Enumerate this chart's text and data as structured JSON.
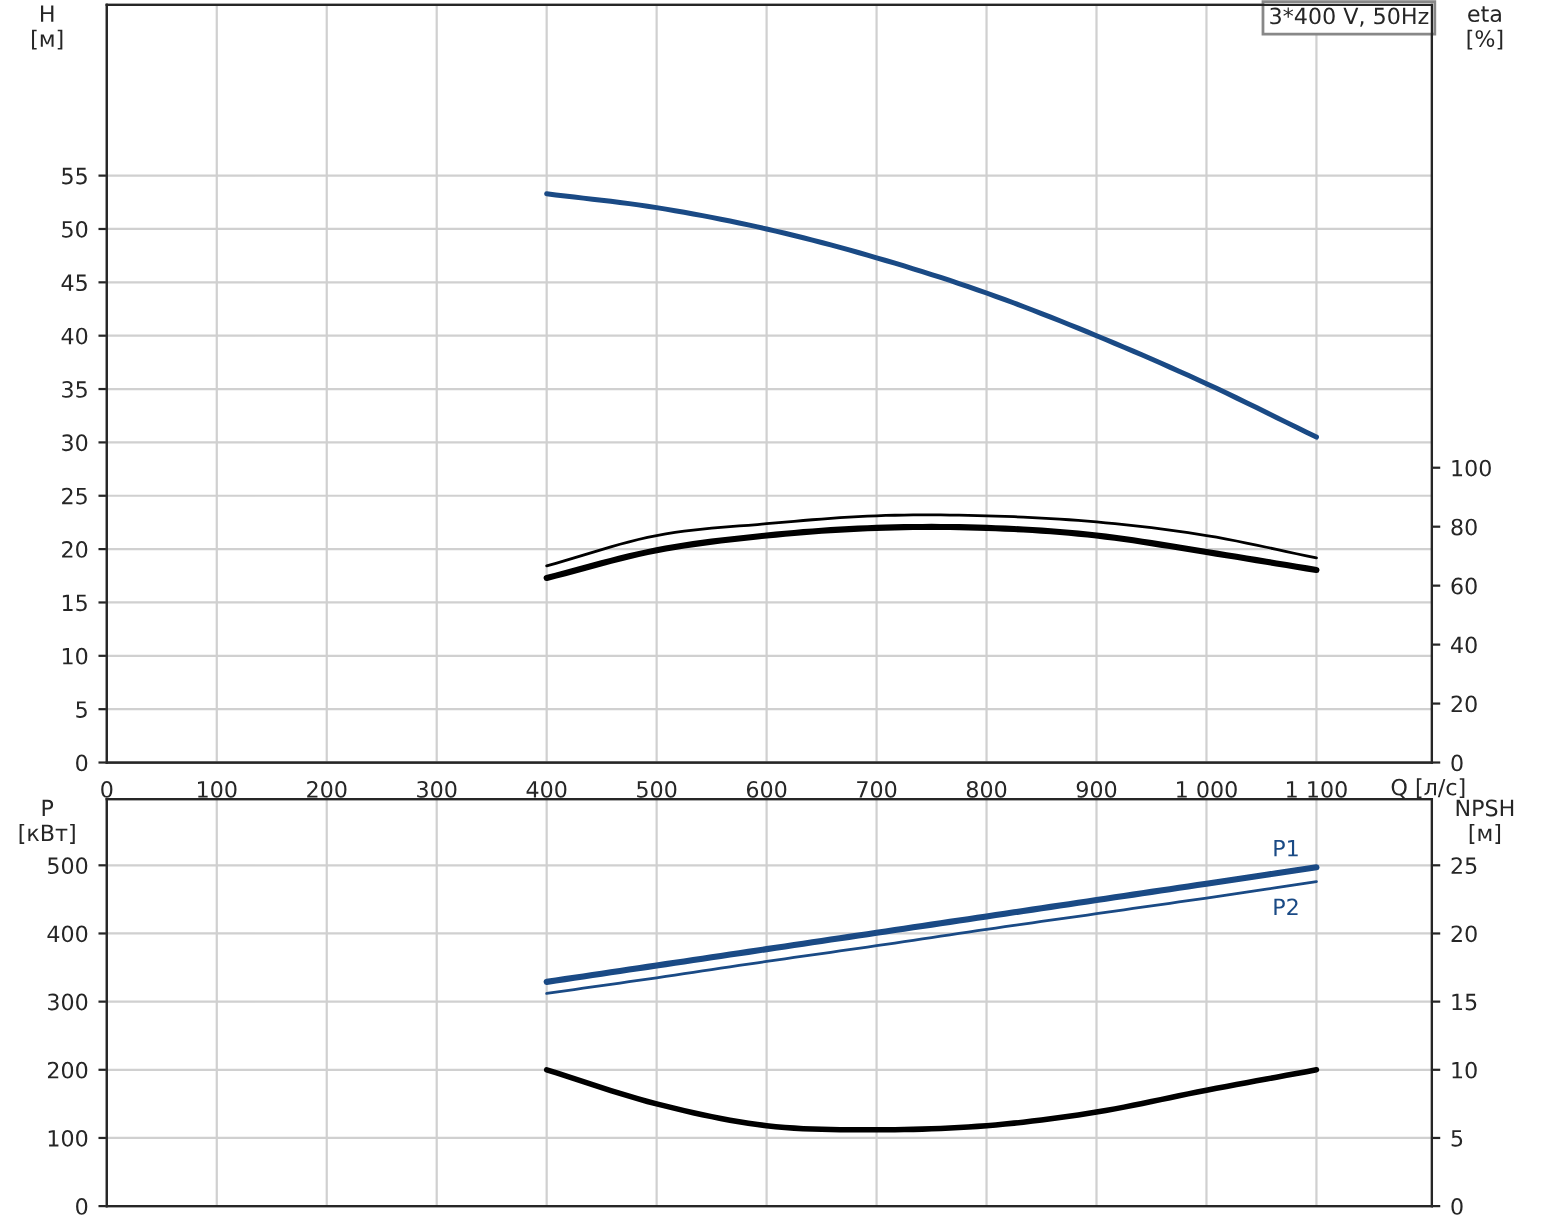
{
  "chart_data": [
    {
      "type": "line",
      "title": "3*400 V, 50Hz",
      "xlabel": "Q [л/с]",
      "ylabel": "H\n[м]",
      "y2label": "eta\n[%]",
      "x": [
        400,
        500,
        600,
        700,
        800,
        900,
        1000,
        1100
      ],
      "xlim": [
        0,
        1205
      ],
      "xticks": [
        0,
        100,
        200,
        300,
        400,
        500,
        600,
        700,
        800,
        900,
        {
          "value": 1000,
          "label": "1 000"
        },
        {
          "value": 1100,
          "label": "1 100"
        }
      ],
      "ylim": [
        0,
        71
      ],
      "yticks": [
        0,
        5,
        10,
        15,
        20,
        25,
        30,
        35,
        40,
        45,
        50,
        55
      ],
      "y2lim": [
        0,
        257
      ],
      "y2ticks": [
        0,
        20,
        40,
        60,
        80,
        100
      ],
      "grid": true,
      "legend": false,
      "series": [
        {
          "color": "#1a4a85",
          "values": [
            53.3,
            52,
            50,
            47.3,
            44,
            40,
            35.5,
            30.5
          ]
        },
        {
          "color": "#000000",
          "axis": "y2",
          "values": [
            66.7,
            77,
            81,
            83.7,
            83.7,
            81.6,
            77,
            69.4
          ]
        },
        {
          "color": "#000000",
          "axis": "y2",
          "values": [
            62.6,
            72,
            77,
            79.6,
            79.6,
            77,
            71.4,
            65.3
          ]
        }
      ]
    },
    {
      "type": "line",
      "ylabel": "P\n[кВт]",
      "y2label": "NPSH\n[м]",
      "x": [
        400,
        500,
        600,
        700,
        800,
        900,
        1000,
        1100
      ],
      "xlim": [
        0,
        1205
      ],
      "xticks": [
        0,
        100,
        200,
        300,
        400,
        500,
        600,
        700,
        800,
        900,
        1000,
        1100
      ],
      "ylim": [
        0,
        597
      ],
      "yticks": [
        0,
        100,
        200,
        300,
        400,
        500
      ],
      "y2lim": [
        0,
        29.85
      ],
      "y2ticks": [
        0,
        5,
        10,
        15,
        20,
        25
      ],
      "grid": true,
      "legend": false,
      "tick_labels": "y",
      "series": [
        {
          "name": "P1",
          "color": "#1a4a85",
          "values": [
            329,
            353,
            377,
            401,
            425,
            449,
            473,
            497
          ]
        },
        {
          "name": "P2",
          "color": "#1a4a85",
          "values": [
            312,
            335,
            359,
            382,
            406,
            429,
            452,
            476
          ]
        },
        {
          "color": "#000000",
          "axis": "y2",
          "values": [
            10,
            7.5,
            5.9,
            5.6,
            5.9,
            6.9,
            8.5,
            10
          ]
        }
      ]
    }
  ]
}
